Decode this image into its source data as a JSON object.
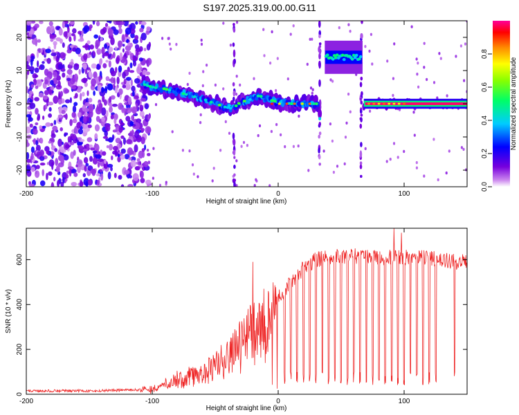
{
  "title": "S197.2025.319.00.00.G11",
  "colors": {
    "snr_line": "#ee2222",
    "axis": "#000000",
    "background": "#ffffff"
  },
  "chart_data": [
    {
      "type": "heatmap",
      "name": "spectrogram",
      "xlabel": "Height of straight line (km)",
      "ylabel": "Frequency (Hz)",
      "xlim": [
        -200,
        150
      ],
      "ylim": [
        -25,
        25
      ],
      "x_ticks": [
        -200,
        -100,
        0,
        100
      ],
      "x_tick_labels": [
        "-200",
        "-100",
        "0",
        "100"
      ],
      "y_ticks": [
        -20,
        -10,
        0,
        10,
        20
      ],
      "y_tick_labels": [
        "-20",
        "-10",
        "0",
        "10",
        "20"
      ],
      "colorbar": {
        "label": "Normalized spectral amplitude",
        "range": [
          0,
          1
        ],
        "ticks": [
          0,
          0.2,
          0.4,
          0.6,
          0.8
        ],
        "tick_labels": [
          "0.0",
          "0.2",
          "0.4",
          "0.6",
          "0.8"
        ],
        "colormap": "rainbow (white-purple-blue-cyan-green-yellow-orange-red-magenta)"
      },
      "features": [
        {
          "region": "noise",
          "x_range": [
            -200,
            -110
          ],
          "freq_range": [
            -25,
            25
          ],
          "amplitude": 0.2
        },
        {
          "region": "signal_trace",
          "points": [
            [
              -108,
              6
            ],
            [
              -100,
              5
            ],
            [
              -90,
              4.5
            ],
            [
              -80,
              3.5
            ],
            [
              -70,
              2.5
            ],
            [
              -60,
              1.5
            ],
            [
              -50,
              0
            ],
            [
              -42,
              -1
            ],
            [
              -36,
              -1.5
            ],
            [
              -30,
              0.5
            ],
            [
              -20,
              1.5
            ],
            [
              -15,
              2.5
            ],
            [
              -10,
              1.5
            ],
            [
              0,
              0.5
            ],
            [
              10,
              0
            ],
            [
              20,
              0
            ],
            [
              30,
              0
            ]
          ],
          "amplitude": 0.55
        },
        {
          "region": "shifted_band",
          "x_range": [
            37,
            67
          ],
          "freq": 14,
          "amplitude": 0.45
        },
        {
          "region": "steady_tone",
          "x_range": [
            68,
            150
          ],
          "freq": 0,
          "amplitude": 0.98
        }
      ]
    },
    {
      "type": "line",
      "name": "snr",
      "xlabel": "Height of straight line (km)",
      "ylabel": "SNR (10 * v/v)",
      "xlim": [
        -200,
        150
      ],
      "ylim": [
        0,
        740
      ],
      "x_ticks": [
        -200,
        -100,
        0,
        100
      ],
      "x_tick_labels": [
        "-200",
        "-100",
        "0",
        "100"
      ],
      "y_ticks": [
        0,
        200,
        400,
        600
      ],
      "y_tick_labels": [
        "0",
        "200",
        "400",
        "600"
      ],
      "series": [
        {
          "name": "SNR",
          "envelope_x": [
            -200,
            -150,
            -110,
            -100,
            -90,
            -80,
            -70,
            -60,
            -50,
            -40,
            -30,
            -20,
            -10,
            0,
            10,
            20,
            30,
            40,
            50,
            60,
            70,
            80,
            90,
            100,
            110,
            120,
            130,
            140,
            150
          ],
          "envelope_y": [
            15,
            15,
            20,
            30,
            55,
            80,
            100,
            120,
            150,
            200,
            270,
            340,
            390,
            430,
            500,
            560,
            600,
            610,
            615,
            615,
            615,
            610,
            610,
            610,
            610,
            605,
            600,
            590,
            590
          ],
          "spikes": [
            [
              -20,
              590
            ],
            [
              -5,
              410
            ],
            [
              92,
              740
            ],
            [
              98,
              720
            ]
          ],
          "dropouts_x": [
            5,
            10,
            15,
            20,
            25,
            30,
            35,
            40,
            45,
            50,
            55,
            60,
            65,
            70,
            75,
            80,
            85,
            90,
            95,
            100,
            105,
            110,
            115,
            120,
            125,
            140
          ]
        }
      ]
    }
  ]
}
